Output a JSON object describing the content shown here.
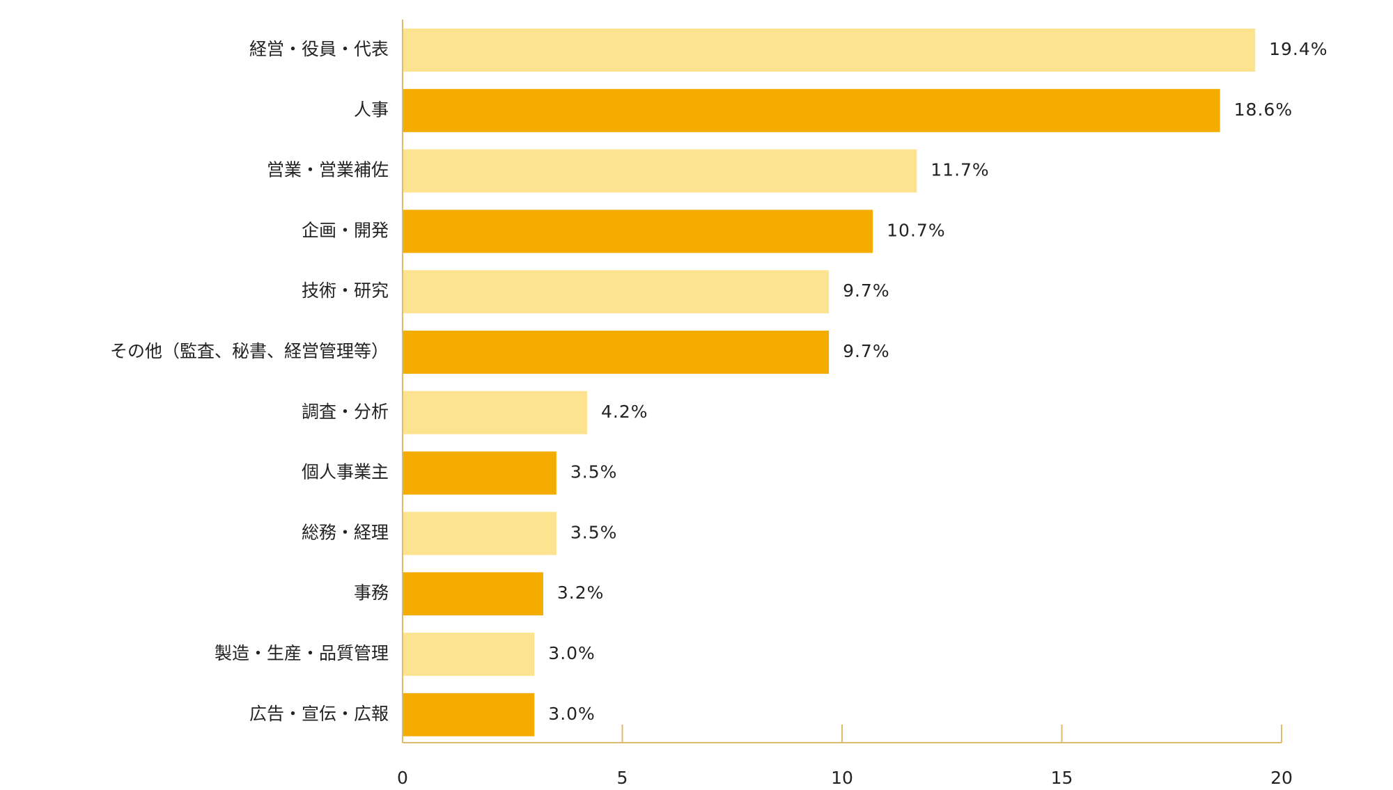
{
  "chart_data": {
    "type": "hbar",
    "categories": [
      "経営・役員・代表",
      "人事",
      "営業・営業補佐",
      "企画・開発",
      "技術・研究",
      "その他（監査、秘書、経営管理等）",
      "調査・分析",
      "個人事業主",
      "総務・経理",
      "事務",
      "製造・生産・品質管理",
      "広告・宣伝・広報"
    ],
    "values": [
      19.4,
      18.6,
      11.7,
      10.7,
      9.7,
      9.7,
      4.2,
      3.5,
      3.5,
      3.2,
      3.0,
      3.0
    ],
    "value_labels": [
      "19.4%",
      "18.6%",
      "11.7%",
      "10.7%",
      "9.7%",
      "9.7%",
      "4.2%",
      "3.5%",
      "3.5%",
      "3.2%",
      "3.0%",
      "3.0%"
    ],
    "colors": [
      "#fde28f",
      "#f5ac00",
      "#fde28f",
      "#f5ac00",
      "#fde28f",
      "#f5ac00",
      "#fde28f",
      "#f5ac00",
      "#fde28f",
      "#f5ac00",
      "#fde28f",
      "#f5ac00"
    ],
    "xlim": [
      0,
      20
    ],
    "xticks": [
      0,
      5,
      10,
      15,
      20
    ]
  }
}
